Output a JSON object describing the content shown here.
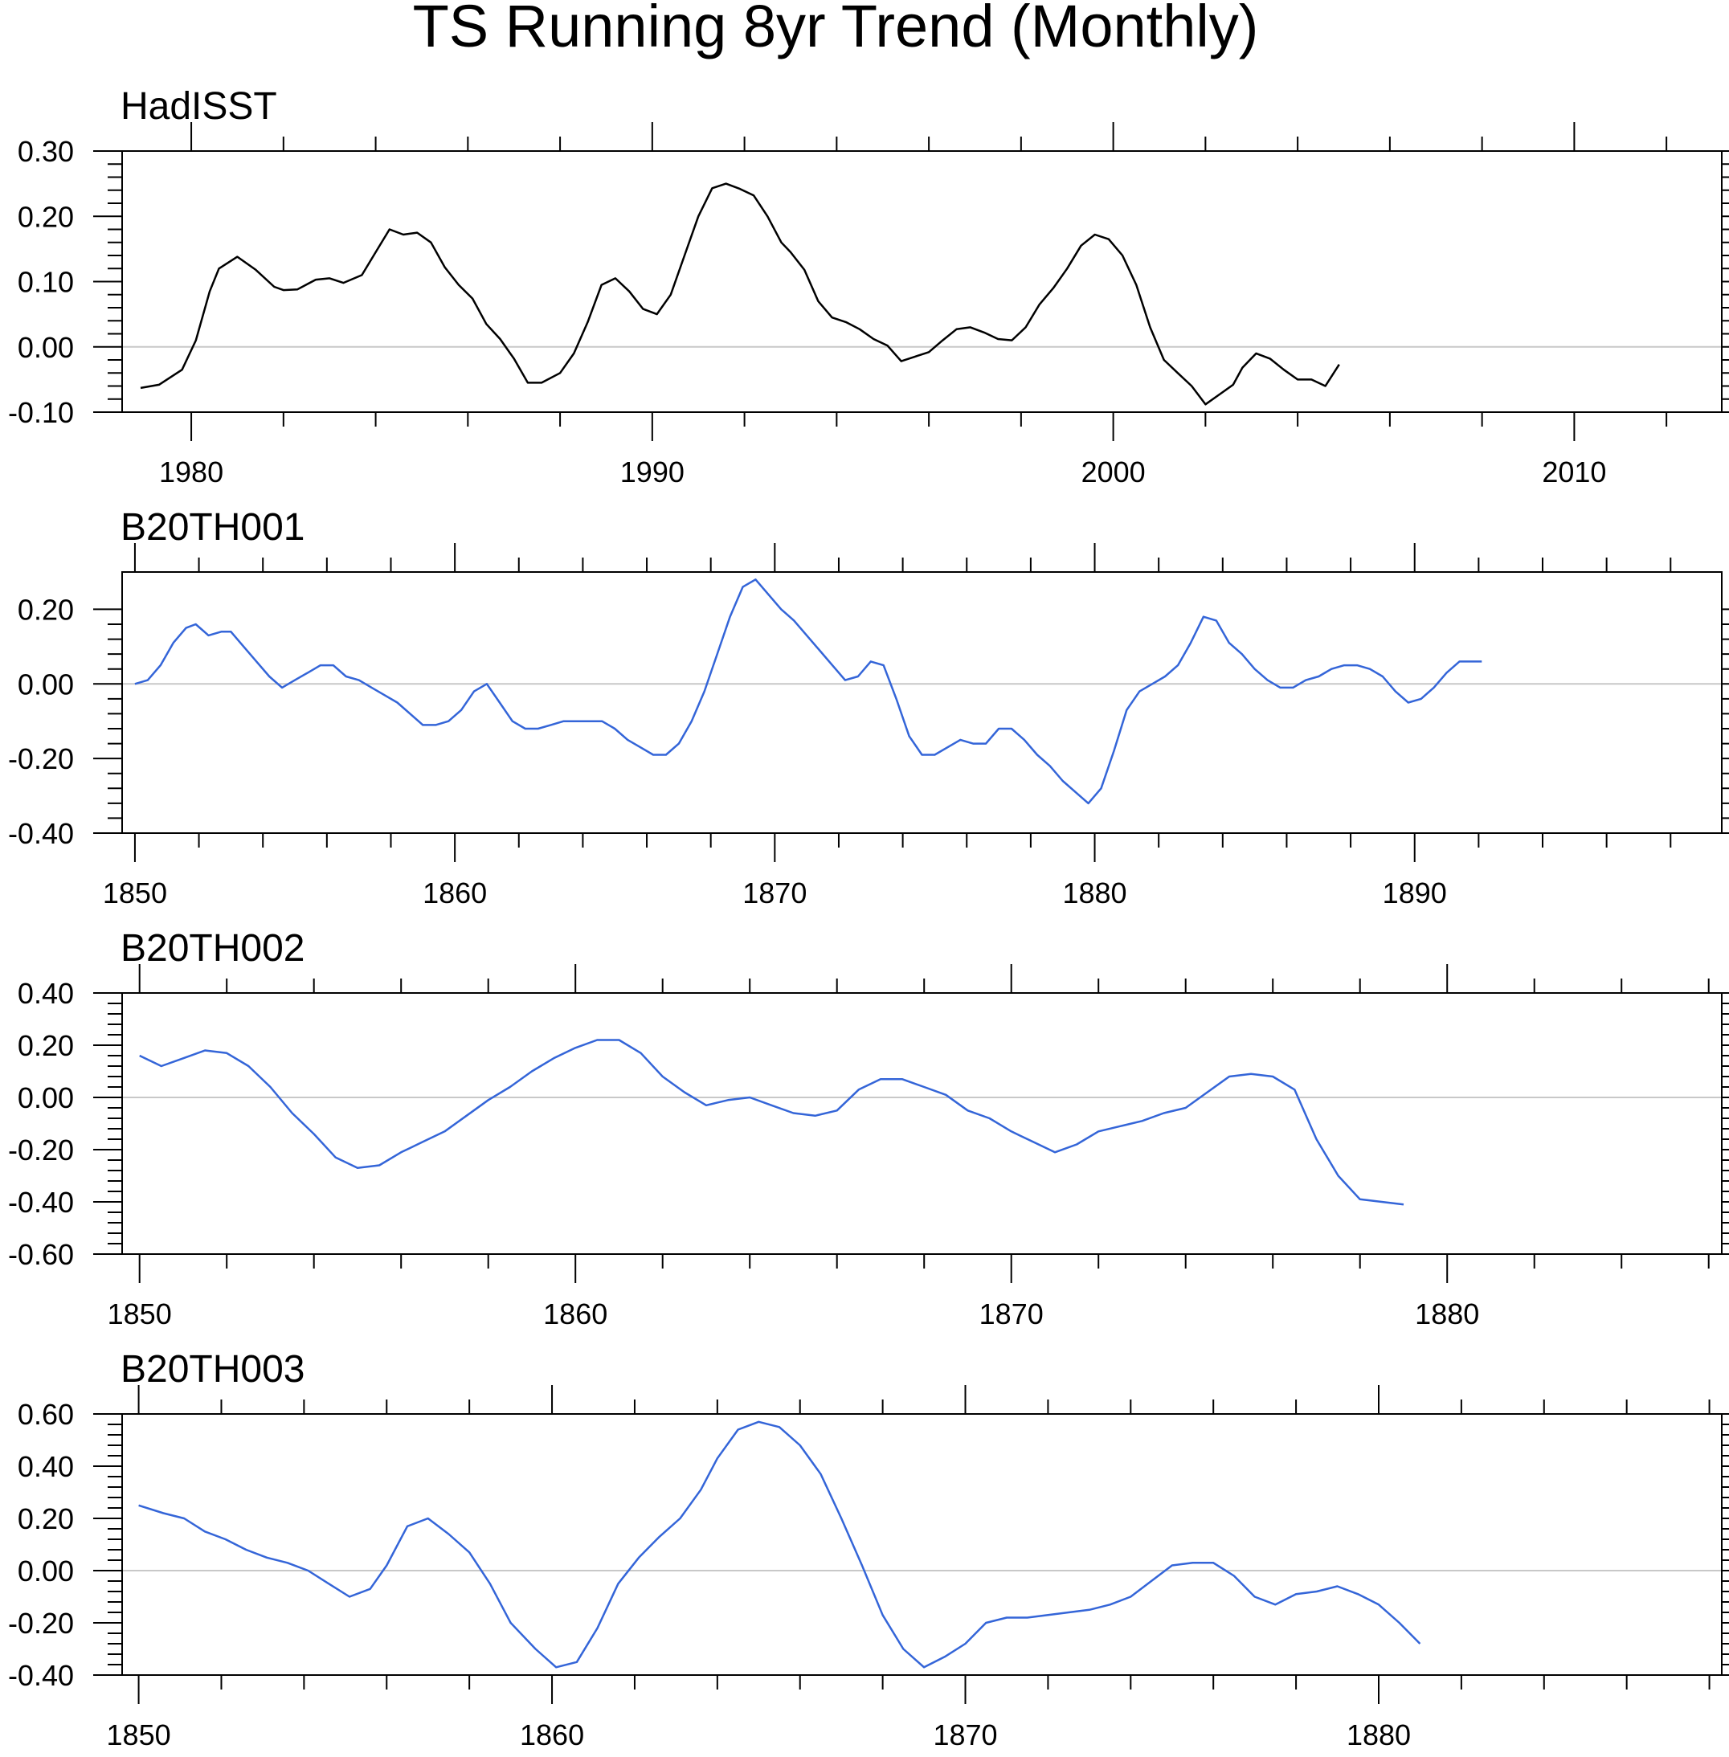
{
  "title": "TS Running 8yr Trend (Monthly)",
  "colors": {
    "obs": "#000000",
    "model": "#3465d8",
    "zero": "#c8c8c8",
    "axis": "#000000"
  },
  "chart_data": [
    {
      "type": "line",
      "name": "HadISST",
      "title": "HadISST",
      "series_color": "obs",
      "xlim": [
        1978.5,
        2013.2
      ],
      "ylim": [
        -0.1,
        0.3
      ],
      "xticks_major": [
        1980,
        1990,
        2000,
        2010
      ],
      "xtick_labels": [
        "1980",
        "1990",
        "2000",
        "2010"
      ],
      "yticks_major": [
        -0.1,
        0,
        0.1,
        0.2,
        0.3
      ],
      "ytick_labels": [
        "-0.10",
        "0.00",
        "0.10",
        "0.20",
        "0.30"
      ],
      "x": [
        1978.9,
        1979.3,
        1979.8,
        1980.1,
        1980.4,
        1980.6,
        1981.0,
        1981.4,
        1981.8,
        1982.0,
        1982.3,
        1982.7,
        1983.0,
        1983.3,
        1983.7,
        1984.0,
        1984.3,
        1984.6,
        1984.9,
        1985.2,
        1985.5,
        1985.8,
        1986.1,
        1986.4,
        1986.7,
        1987.0,
        1987.3,
        1987.6,
        1988.0,
        1988.3,
        1988.6,
        1988.9,
        1989.2,
        1989.5,
        1989.8,
        1990.1,
        1990.4,
        1990.7,
        1991.0,
        1991.3,
        1991.6,
        1991.9,
        1992.2,
        1992.5,
        1992.8,
        1993.0,
        1993.3,
        1993.6,
        1993.9,
        1994.2,
        1994.5,
        1994.8,
        1995.1,
        1995.4,
        1995.7,
        1996.0,
        1996.3,
        1996.6,
        1996.9,
        1997.2,
        1997.5,
        1997.8,
        1998.1,
        1998.4,
        1998.7,
        1999.0,
        1999.3,
        1999.6,
        1999.9,
        2000.2,
        2000.5,
        2000.8,
        2001.1,
        2001.4,
        2001.7,
        2002.0,
        2002.3,
        2002.6,
        2002.8,
        2003.1,
        2003.4,
        2003.7,
        2004.0,
        2004.3,
        2004.6,
        2004.9
      ],
      "y": [
        -0.063,
        -0.058,
        -0.035,
        0.01,
        0.085,
        0.12,
        0.138,
        0.118,
        0.092,
        0.087,
        0.088,
        0.103,
        0.105,
        0.098,
        0.11,
        0.145,
        0.18,
        0.172,
        0.175,
        0.16,
        0.122,
        0.095,
        0.074,
        0.035,
        0.012,
        -0.018,
        -0.055,
        -0.055,
        -0.04,
        -0.01,
        0.038,
        0.095,
        0.105,
        0.085,
        0.058,
        0.05,
        0.08,
        0.14,
        0.2,
        0.243,
        0.25,
        0.242,
        0.232,
        0.2,
        0.16,
        0.145,
        0.118,
        0.07,
        0.045,
        0.038,
        0.027,
        0.012,
        0.002,
        -0.022,
        -0.015,
        -0.008,
        0.01,
        0.027,
        0.03,
        0.022,
        0.012,
        0.01,
        0.03,
        0.065,
        0.09,
        0.12,
        0.155,
        0.172,
        0.165,
        0.14,
        0.095,
        0.03,
        -0.02,
        -0.04,
        -0.06,
        -0.088,
        -0.073,
        -0.058,
        -0.032,
        -0.01,
        -0.018,
        -0.035,
        -0.05,
        -0.05,
        -0.06,
        -0.027
      ]
    },
    {
      "type": "line",
      "name": "B20TH001",
      "title": "B20TH001",
      "series_color": "model",
      "xlim": [
        1849.6,
        1899.6
      ],
      "ylim": [
        -0.4,
        0.3
      ],
      "xticks_major": [
        1850,
        1860,
        1870,
        1880,
        1890
      ],
      "xtick_labels": [
        "1850",
        "1860",
        "1870",
        "1880",
        "1890"
      ],
      "yticks_major": [
        -0.4,
        -0.2,
        0,
        0.2
      ],
      "ytick_labels": [
        "-0.40",
        "-0.20",
        "0.00",
        "0.20"
      ],
      "x": [
        1850.0,
        1850.4,
        1850.8,
        1851.2,
        1851.6,
        1851.9,
        1852.3,
        1852.7,
        1853.0,
        1853.4,
        1853.8,
        1854.2,
        1854.6,
        1855.0,
        1855.4,
        1855.8,
        1856.2,
        1856.6,
        1857.0,
        1857.4,
        1857.8,
        1858.2,
        1858.6,
        1859.0,
        1859.4,
        1859.8,
        1860.2,
        1860.6,
        1861.0,
        1861.4,
        1861.8,
        1862.2,
        1862.6,
        1863.0,
        1863.4,
        1863.8,
        1864.2,
        1864.6,
        1865.0,
        1865.4,
        1865.8,
        1866.2,
        1866.6,
        1867.0,
        1867.4,
        1867.8,
        1868.2,
        1868.6,
        1869.0,
        1869.4,
        1869.8,
        1870.2,
        1870.6,
        1871.0,
        1871.4,
        1871.8,
        1872.2,
        1872.6,
        1873.0,
        1873.4,
        1873.8,
        1874.2,
        1874.6,
        1875.0,
        1875.4,
        1875.8,
        1876.2,
        1876.6,
        1877.0,
        1877.4,
        1877.8,
        1878.2,
        1878.6,
        1879.0,
        1879.4,
        1879.8,
        1880.2,
        1880.6,
        1881.0,
        1881.4,
        1881.8,
        1882.2,
        1882.6,
        1883.0,
        1883.4,
        1883.8,
        1884.2,
        1884.6,
        1885.0,
        1885.4,
        1885.8,
        1886.2,
        1886.6,
        1887.0,
        1887.4,
        1887.8,
        1888.2,
        1888.6,
        1889.0,
        1889.4,
        1889.8,
        1890.2,
        1890.6,
        1891.0,
        1891.4,
        1891.8,
        1892.1
      ],
      "y": [
        0.0,
        0.01,
        0.05,
        0.11,
        0.15,
        0.16,
        0.13,
        0.14,
        0.14,
        0.1,
        0.06,
        0.02,
        -0.01,
        0.01,
        0.03,
        0.05,
        0.05,
        0.02,
        0.01,
        -0.01,
        -0.03,
        -0.05,
        -0.08,
        -0.11,
        -0.11,
        -0.1,
        -0.07,
        -0.02,
        0.0,
        -0.05,
        -0.1,
        -0.12,
        -0.12,
        -0.11,
        -0.1,
        -0.1,
        -0.1,
        -0.1,
        -0.12,
        -0.15,
        -0.17,
        -0.19,
        -0.19,
        -0.16,
        -0.1,
        -0.02,
        0.08,
        0.18,
        0.26,
        0.28,
        0.24,
        0.2,
        0.17,
        0.13,
        0.09,
        0.05,
        0.01,
        0.02,
        0.06,
        0.05,
        -0.04,
        -0.14,
        -0.19,
        -0.19,
        -0.17,
        -0.15,
        -0.16,
        -0.16,
        -0.12,
        -0.12,
        -0.15,
        -0.19,
        -0.22,
        -0.26,
        -0.29,
        -0.32,
        -0.28,
        -0.18,
        -0.07,
        -0.02,
        0.0,
        0.02,
        0.05,
        0.11,
        0.18,
        0.17,
        0.11,
        0.08,
        0.04,
        0.01,
        -0.01,
        -0.01,
        0.01,
        0.02,
        0.04,
        0.05,
        0.05,
        0.04,
        0.02,
        -0.02,
        -0.05,
        -0.04,
        -0.01,
        0.03,
        0.06,
        0.06,
        0.06
      ]
    },
    {
      "type": "line",
      "name": "B20TH002",
      "title": "B20TH002",
      "series_color": "model",
      "xlim": [
        1849.6,
        1886.3
      ],
      "ylim": [
        -0.6,
        0.4
      ],
      "xticks_major": [
        1850,
        1860,
        1870,
        1880
      ],
      "xtick_labels": [
        "1850",
        "1860",
        "1870",
        "1880"
      ],
      "yticks_major": [
        -0.6,
        -0.4,
        -0.2,
        0,
        0.2,
        0.4
      ],
      "ytick_labels": [
        "-0.60",
        "-0.40",
        "-0.20",
        "0.00",
        "0.20",
        "0.40"
      ],
      "x": [
        1850.0,
        1850.5,
        1851.0,
        1851.5,
        1852.0,
        1852.5,
        1853.0,
        1853.5,
        1854.0,
        1854.5,
        1855.0,
        1855.5,
        1856.0,
        1856.5,
        1857.0,
        1857.5,
        1858.0,
        1858.5,
        1859.0,
        1859.5,
        1860.0,
        1860.5,
        1861.0,
        1861.5,
        1862.0,
        1862.5,
        1863.0,
        1863.5,
        1864.0,
        1864.5,
        1865.0,
        1865.5,
        1866.0,
        1866.5,
        1867.0,
        1867.5,
        1868.0,
        1868.5,
        1869.0,
        1869.5,
        1870.0,
        1870.5,
        1871.0,
        1871.5,
        1872.0,
        1872.5,
        1873.0,
        1873.5,
        1874.0,
        1874.5,
        1875.0,
        1875.5,
        1876.0,
        1876.5,
        1877.0,
        1877.5,
        1878.0,
        1878.5,
        1879.0
      ],
      "y": [
        0.16,
        0.12,
        0.15,
        0.18,
        0.17,
        0.12,
        0.04,
        -0.06,
        -0.14,
        -0.23,
        -0.27,
        -0.26,
        -0.21,
        -0.17,
        -0.13,
        -0.07,
        -0.01,
        0.04,
        0.1,
        0.15,
        0.19,
        0.22,
        0.22,
        0.17,
        0.08,
        0.02,
        -0.03,
        -0.01,
        0.0,
        -0.03,
        -0.06,
        -0.07,
        -0.05,
        0.03,
        0.07,
        0.07,
        0.04,
        0.01,
        -0.05,
        -0.08,
        -0.13,
        -0.17,
        -0.21,
        -0.18,
        -0.13,
        -0.11,
        -0.09,
        -0.06,
        -0.04,
        0.02,
        0.08,
        0.09,
        0.08,
        0.03,
        -0.16,
        -0.3,
        -0.39,
        -0.4,
        -0.41
      ]
    },
    {
      "type": "line",
      "name": "B20TH003",
      "title": "B20TH003",
      "series_color": "model",
      "xlim": [
        1849.6,
        1888.3
      ],
      "ylim": [
        -0.4,
        0.6
      ],
      "xticks_major": [
        1850,
        1860,
        1870,
        1880
      ],
      "xtick_labels": [
        "1850",
        "1860",
        "1870",
        "1880"
      ],
      "yticks_major": [
        -0.4,
        -0.2,
        0,
        0.2,
        0.4,
        0.6
      ],
      "ytick_labels": [
        "-0.40",
        "-0.20",
        "0.00",
        "0.20",
        "0.40",
        "0.60"
      ],
      "x": [
        1850.0,
        1850.6,
        1851.1,
        1851.6,
        1852.1,
        1852.6,
        1853.1,
        1853.6,
        1854.1,
        1854.6,
        1855.1,
        1855.6,
        1856.0,
        1856.5,
        1857.0,
        1857.5,
        1858.0,
        1858.5,
        1859.0,
        1859.6,
        1860.1,
        1860.6,
        1861.1,
        1861.6,
        1862.1,
        1862.6,
        1863.1,
        1863.6,
        1864.0,
        1864.5,
        1865.0,
        1865.5,
        1866.0,
        1866.5,
        1867.0,
        1867.5,
        1868.0,
        1868.5,
        1869.0,
        1869.5,
        1870.0,
        1870.5,
        1871.0,
        1871.5,
        1872.0,
        1872.5,
        1873.0,
        1873.5,
        1874.0,
        1874.5,
        1875.0,
        1875.5,
        1876.0,
        1876.5,
        1877.0,
        1877.5,
        1878.0,
        1878.5,
        1879.0,
        1879.5,
        1880.0,
        1880.5,
        1881.0
      ],
      "y": [
        0.25,
        0.22,
        0.2,
        0.15,
        0.12,
        0.08,
        0.05,
        0.03,
        0.0,
        -0.05,
        -0.1,
        -0.07,
        0.02,
        0.17,
        0.2,
        0.14,
        0.07,
        -0.05,
        -0.2,
        -0.3,
        -0.37,
        -0.35,
        -0.22,
        -0.05,
        0.05,
        0.13,
        0.2,
        0.31,
        0.43,
        0.54,
        0.57,
        0.55,
        0.48,
        0.37,
        0.2,
        0.02,
        -0.17,
        -0.3,
        -0.37,
        -0.33,
        -0.28,
        -0.2,
        -0.18,
        -0.18,
        -0.17,
        -0.16,
        -0.15,
        -0.13,
        -0.1,
        -0.04,
        0.02,
        0.03,
        0.03,
        -0.02,
        -0.1,
        -0.13,
        -0.09,
        -0.08,
        -0.06,
        -0.09,
        -0.13,
        -0.2,
        -0.28
      ]
    }
  ]
}
